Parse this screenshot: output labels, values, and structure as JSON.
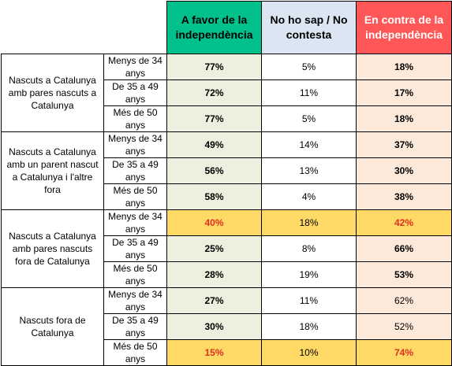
{
  "headers": {
    "favor": "A favor de la independència",
    "nohosap": "No ho sap / No contesta",
    "contra": "En contra de la independència"
  },
  "groups": [
    {
      "label": "Nascuts a Catalunya amb pares nascuts a Catalunya",
      "rows": [
        {
          "age": "Menys de 34 anys",
          "favor": "77%",
          "nohosap": "5%",
          "contra": "18%"
        },
        {
          "age": "De 35 a 49 anys",
          "favor": "72%",
          "nohosap": "11%",
          "contra": "17%"
        },
        {
          "age": "Més de 50 anys",
          "favor": "77%",
          "nohosap": "5%",
          "contra": "18%"
        }
      ]
    },
    {
      "label": "Nascuts a Catalunya amb un parent nascut a Catalunya i l'altre fora",
      "rows": [
        {
          "age": "Menys de 34 anys",
          "favor": "49%",
          "nohosap": "14%",
          "contra": "37%"
        },
        {
          "age": "De 35 a 49 anys",
          "favor": "56%",
          "nohosap": "13%",
          "contra": "30%"
        },
        {
          "age": "Més de 50 anys",
          "favor": "58%",
          "nohosap": "4%",
          "contra": "38%"
        }
      ]
    },
    {
      "label": "Nascuts a Catalunya amb pares nascuts fora de Catalunya",
      "rows": [
        {
          "age": "Menys de 34 anys",
          "favor": "40%",
          "nohosap": "18%",
          "contra": "42%"
        },
        {
          "age": "De 35 a 49 anys",
          "favor": "25%",
          "nohosap": "8%",
          "contra": "66%"
        },
        {
          "age": "Més de 50 anys",
          "favor": "28%",
          "nohosap": "19%",
          "contra": "53%"
        }
      ]
    },
    {
      "label": "Nascuts fora de Catalunya",
      "rows": [
        {
          "age": "Menys de 34 anys",
          "favor": "27%",
          "nohosap": "11%",
          "contra": "62%"
        },
        {
          "age": "De 35 a 49 anys",
          "favor": "30%",
          "nohosap": "18%",
          "contra": "52%"
        },
        {
          "age": "Més de 50 anys",
          "favor": "15%",
          "nohosap": "10%",
          "contra": "74%"
        }
      ]
    }
  ],
  "colors": {
    "favor_header": "#00c08b",
    "nohosap_header": "#dce6f2",
    "contra_header": "#ff5757",
    "favor_cell": "#ebf1de",
    "contra_cell": "#fde9d9",
    "highlight_row": "#ffd966",
    "highlight_text": "#e0301e"
  }
}
